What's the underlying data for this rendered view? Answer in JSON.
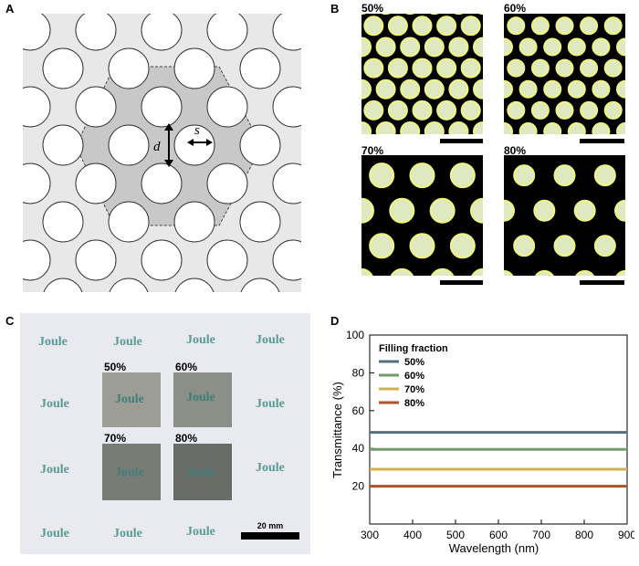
{
  "panels": {
    "a": {
      "letter": "A",
      "labels": {
        "diameter": "d",
        "spacing": "s"
      }
    },
    "b": {
      "letter": "B",
      "images": [
        {
          "label": "50%"
        },
        {
          "label": "60%"
        },
        {
          "label": "70%"
        },
        {
          "label": "80%"
        }
      ]
    },
    "c": {
      "letter": "C",
      "watermark": "Joule",
      "samples": [
        {
          "label": "50%",
          "text": "Joule",
          "color": "#9c9e96"
        },
        {
          "label": "60%",
          "text": "Joule",
          "color": "#8c8e88"
        },
        {
          "label": "70%",
          "text": "Joule",
          "color": "#797b75"
        },
        {
          "label": "80%",
          "text": "Joule",
          "color": "#6a6c67"
        }
      ],
      "scale_bar": "20 mm"
    },
    "d": {
      "letter": "D"
    }
  },
  "chart_data": {
    "type": "line",
    "xlabel": "Wavelength (nm)",
    "ylabel": "Transmittance (%)",
    "xlim": [
      300,
      900
    ],
    "ylim": [
      0,
      100
    ],
    "xticks": [
      300,
      400,
      500,
      600,
      700,
      800,
      900
    ],
    "yticks": [
      20,
      40,
      60,
      80,
      100
    ],
    "legend_title": "Filling fraction",
    "legend_position": "top-left",
    "grid": false,
    "series": [
      {
        "name": "50%",
        "color": "#4f7280",
        "values": [
          48.5,
          48.5
        ]
      },
      {
        "name": "60%",
        "color": "#6f9e6a",
        "values": [
          39.5,
          39.5
        ]
      },
      {
        "name": "70%",
        "color": "#d2b04e",
        "values": [
          29.0,
          29.0
        ]
      },
      {
        "name": "80%",
        "color": "#b0522a",
        "values": [
          20.0,
          20.0
        ]
      }
    ],
    "x": [
      300,
      900
    ]
  }
}
